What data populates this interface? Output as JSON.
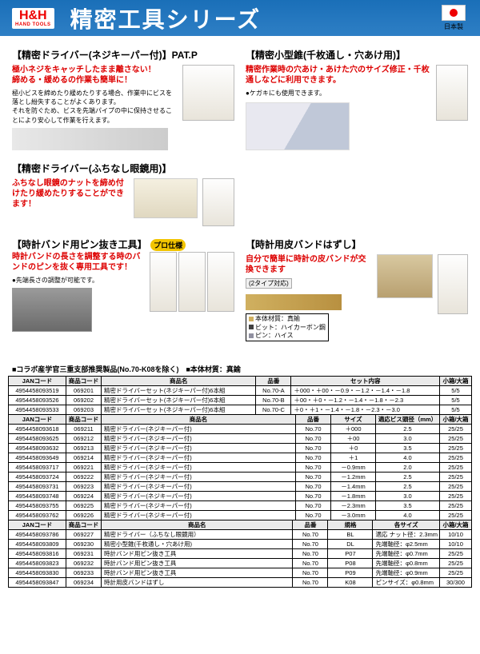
{
  "header": {
    "logo_top": "H&H",
    "logo_sub": "HAND TOOLS",
    "title": "精密工具シリーズ",
    "made_in": "日本製"
  },
  "sections": {
    "s1": {
      "title": "【精密ドライバー(ネジキーパー付)】PAT.P",
      "red": "極小ネジをキャッチしたまま離さない！\n締める・緩めるの作業も簡単に！",
      "body": "極小ビスを締めたり緩めたりする場合、作業中にビスを落とし紛失することがよくあります。\nそれを防ぐため、ビスを先端パイプの中に保持させることにより安心して作業を行えます。"
    },
    "s2": {
      "title": "【精密小型錐(千枚通し・穴あけ用)】",
      "red": "精密作業時の穴あけ・あけた穴のサイズ修正・千枚通しなどに利用できます。",
      "bullet": "ケガキにも使用できます。"
    },
    "s3": {
      "title": "【精密ドライバー(ふちなし眼鏡用)】",
      "red": "ふちなし眼鏡のナットを締め付けたり緩めたりすることができます！"
    },
    "s4": {
      "title": "【時計バンド用ピン抜き工具】",
      "badge": "プロ仕様",
      "red": "時計バンドの長さを調整する時のバンドのピンを抜く専用工具です！",
      "bullet": "先端長さの調整が可能です。"
    },
    "s5": {
      "title": "【時計用皮バンドはずし】",
      "red": "自分で簡単に時計の皮バンドが交換できます",
      "tape": "(2タイプ対応)",
      "box_lines": [
        "本体材質：真鍮",
        "ビット：ハイカーボン鋼",
        "ピン：ハイス"
      ],
      "box_colors": [
        "#d0b060",
        "#404040",
        "#9090a0"
      ]
    }
  },
  "note": "■コラボ産学官三重支部推奨製品(No.70-K08を除く)　■本体材質：真鍮",
  "table1": {
    "headers": [
      "JANコード",
      "商品コード",
      "商品名",
      "品番",
      "セット内容",
      "小箱/大箱"
    ],
    "rows": [
      [
        "4954458093519",
        "069201",
        "精密ドライバーセット(ネジキーパー付)6本組",
        "No.70-A",
        "＋000・＋00・－0.9・－1.2・－1.4・－1.8",
        "5/5"
      ],
      [
        "4954458093526",
        "069202",
        "精密ドライバーセット(ネジキーパー付)6本組",
        "No.70-B",
        "＋00・＋0・－1.2・－1.4・－1.8・－2.3",
        "5/5"
      ],
      [
        "4954458093533",
        "069203",
        "精密ドライバーセット(ネジキーパー付)6本組",
        "No.70-C",
        "＋0・＋1・－1.4・－1.8・－2.3・－3.0",
        "5/5"
      ]
    ]
  },
  "table2": {
    "headers": [
      "JANコード",
      "商品コード",
      "商品名",
      "品番",
      "サイズ",
      "適応ビス頭径（mm）",
      "小箱/大箱"
    ],
    "rows": [
      [
        "4954458093618",
        "069211",
        "精密ドライバー(ネジキーパー付)",
        "No.70",
        "＋000",
        "2.5",
        "25/25"
      ],
      [
        "4954458093625",
        "069212",
        "精密ドライバー(ネジキーパー付)",
        "No.70",
        "＋00",
        "3.0",
        "25/25"
      ],
      [
        "4954458093632",
        "069213",
        "精密ドライバー(ネジキーパー付)",
        "No.70",
        "＋0",
        "3.5",
        "25/25"
      ],
      [
        "4954458093649",
        "069214",
        "精密ドライバー(ネジキーパー付)",
        "No.70",
        "＋1",
        "4.0",
        "25/25"
      ],
      [
        "4954458093717",
        "069221",
        "精密ドライバー(ネジキーパー付)",
        "No.70",
        "－0.9mm",
        "2.0",
        "25/25"
      ],
      [
        "4954458093724",
        "069222",
        "精密ドライバー(ネジキーパー付)",
        "No.70",
        "－1.2mm",
        "2.5",
        "25/25"
      ],
      [
        "4954458093731",
        "069223",
        "精密ドライバー(ネジキーパー付)",
        "No.70",
        "－1.4mm",
        "2.5",
        "25/25"
      ],
      [
        "4954458093748",
        "069224",
        "精密ドライバー(ネジキーパー付)",
        "No.70",
        "－1.8mm",
        "3.0",
        "25/25"
      ],
      [
        "4954458093755",
        "069225",
        "精密ドライバー(ネジキーパー付)",
        "No.70",
        "－2.3mm",
        "3.5",
        "25/25"
      ],
      [
        "4954458093762",
        "069226",
        "精密ドライバー(ネジキーパー付)",
        "No.70",
        "－3.0mm",
        "4.0",
        "25/25"
      ]
    ]
  },
  "table3": {
    "headers": [
      "JANコード",
      "商品コード",
      "商品名",
      "品番",
      "規格",
      "各サイズ",
      "小箱/大箱"
    ],
    "rows": [
      [
        "4954458093786",
        "069227",
        "精密ドライバー（ふちなし眼鏡用）",
        "No.70",
        "BL",
        "適応 ナット径：2.3mm",
        "10/10"
      ],
      [
        "4954458093809",
        "069230",
        "精密小型錐(千枚通し・穴あけ用)",
        "No.70",
        "DL",
        "先端軸径：φ2.5mm",
        "10/10"
      ],
      [
        "4954458093816",
        "069231",
        "時計バンド用ピン抜き工具",
        "No.70",
        "P07",
        "先端軸径：φ0.7mm",
        "25/25"
      ],
      [
        "4954458093823",
        "069232",
        "時計バンド用ピン抜き工具",
        "No.70",
        "P08",
        "先端軸径：φ0.8mm",
        "25/25"
      ],
      [
        "4954458093830",
        "069233",
        "時計バンド用ピン抜き工具",
        "No.70",
        "P09",
        "先端軸径：φ0.9mm",
        "25/25"
      ],
      [
        "4954458093847",
        "069234",
        "時計用皮バンドはずし",
        "No.70",
        "K08",
        "ピンサイズ：φ0.8mm",
        "30/300"
      ]
    ]
  }
}
